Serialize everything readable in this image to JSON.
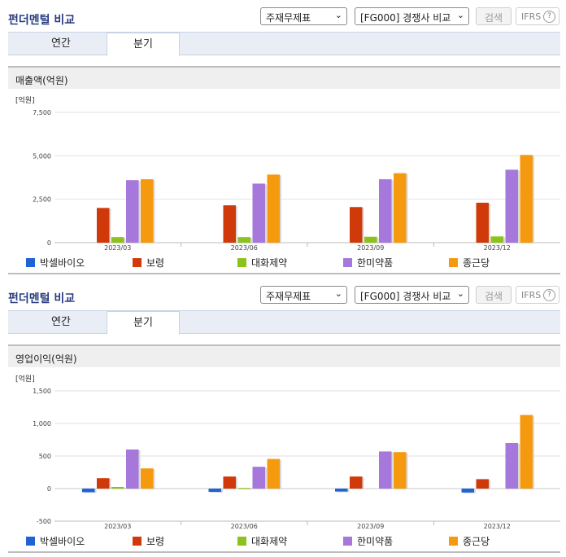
{
  "panels": [
    {
      "title": "펀더멘털 비교",
      "select_report": "주재무제표",
      "select_compare": "[FG000] 경쟁사 비교",
      "search_label": "검색",
      "ifrs_label": "IFRS",
      "help_symbol": "?",
      "tabs": [
        {
          "label": "연간"
        },
        {
          "label": "분기"
        }
      ],
      "active_tab": 1,
      "section_title": "매출액(억원)",
      "chart_data": {
        "type": "bar",
        "unit_label": "[억원]",
        "categories": [
          "2023/03",
          "2023/06",
          "2023/09",
          "2023/12"
        ],
        "ylim": [
          0,
          7500
        ],
        "yticks": [
          0,
          2500,
          5000,
          7500
        ],
        "ytick_labels": [
          "0",
          "2,500",
          "5,000",
          "7,500"
        ],
        "grid": true,
        "legend_position": "bottom",
        "series": [
          {
            "name": "박셀바이오",
            "color": "#1f63d6",
            "values": [
              0,
              0,
              0,
              0
            ]
          },
          {
            "name": "보령",
            "color": "#d03a0a",
            "values": [
              2000,
              2150,
              2050,
              2300
            ]
          },
          {
            "name": "대화제약",
            "color": "#8cc21c",
            "values": [
              320,
              320,
              340,
              360
            ]
          },
          {
            "name": "한미약품",
            "color": "#a678dc",
            "values": [
              3600,
              3400,
              3650,
              4200
            ]
          },
          {
            "name": "종근당",
            "color": "#f59a0e",
            "values": [
              3650,
              3920,
              4000,
              5050
            ]
          }
        ]
      }
    },
    {
      "title": "펀더멘털 비교",
      "select_report": "주재무제표",
      "select_compare": "[FG000] 경쟁사 비교",
      "search_label": "검색",
      "ifrs_label": "IFRS",
      "help_symbol": "?",
      "tabs": [
        {
          "label": "연간"
        },
        {
          "label": "분기"
        }
      ],
      "active_tab": 1,
      "section_title": "영업이익(억원)",
      "chart_data": {
        "type": "bar",
        "unit_label": "[억원]",
        "categories": [
          "2023/03",
          "2023/06",
          "2023/09",
          "2023/12"
        ],
        "ylim": [
          -500,
          1500
        ],
        "yticks": [
          -500,
          0,
          500,
          1000,
          1500
        ],
        "ytick_labels": [
          "-500",
          "0",
          "500",
          "1,000",
          "1,500"
        ],
        "grid": true,
        "legend_position": "bottom",
        "series": [
          {
            "name": "박셀바이오",
            "color": "#1f63d6",
            "values": [
              -55,
              -50,
              -45,
              -60
            ]
          },
          {
            "name": "보령",
            "color": "#d03a0a",
            "values": [
              160,
              185,
              185,
              145
            ]
          },
          {
            "name": "대화제약",
            "color": "#8cc21c",
            "values": [
              25,
              10,
              0,
              0
            ]
          },
          {
            "name": "한미약품",
            "color": "#a678dc",
            "values": [
              600,
              335,
              570,
              700
            ]
          },
          {
            "name": "종근당",
            "color": "#f59a0e",
            "values": [
              310,
              455,
              560,
              1130
            ]
          }
        ]
      }
    }
  ]
}
